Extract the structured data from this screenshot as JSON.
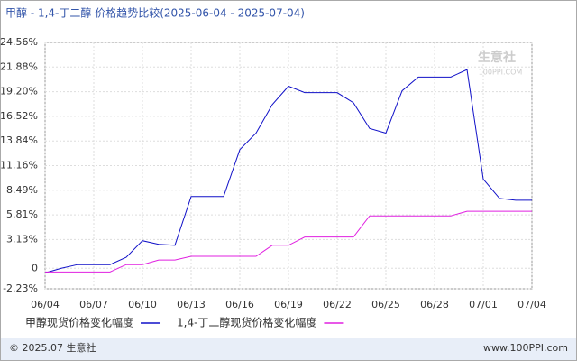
{
  "chart_data": {
    "type": "line",
    "title": "甲醇 - 1,4-丁二醇 价格趋势比较(2025-06-04 - 2025-07-04)",
    "categories": [
      "06/04",
      null,
      null,
      "06/07",
      null,
      null,
      "06/10",
      null,
      null,
      "06/13",
      null,
      null,
      "06/16",
      null,
      null,
      "06/19",
      null,
      null,
      "06/22",
      null,
      null,
      "06/25",
      null,
      null,
      "06/28",
      null,
      null,
      "07/01",
      null,
      null,
      "07/04"
    ],
    "series": [
      {
        "name": "甲醇现货价格变化幅度",
        "color": "#1010c8",
        "values": [
          -0.5,
          0,
          0.4,
          0.4,
          0.4,
          1.2,
          3.0,
          2.6,
          2.5,
          7.8,
          7.8,
          7.8,
          12.9,
          14.7,
          17.8,
          19.8,
          19.1,
          19.1,
          19.1,
          18.0,
          15.2,
          14.7,
          19.3,
          20.8,
          20.8,
          20.8,
          21.6,
          9.7,
          7.6,
          7.4,
          7.4
        ]
      },
      {
        "name": "1,4-丁二醇现货价格变化幅度",
        "color": "#e020e0",
        "values": [
          -0.4,
          -0.4,
          -0.4,
          -0.4,
          -0.4,
          0.4,
          0.4,
          0.9,
          0.9,
          1.3,
          1.3,
          1.3,
          1.3,
          1.3,
          2.5,
          2.5,
          3.4,
          3.4,
          3.4,
          3.4,
          5.7,
          5.7,
          5.7,
          5.7,
          5.7,
          5.7,
          6.2,
          6.2,
          6.2,
          6.2,
          6.2
        ]
      }
    ],
    "ylim": [
      -2.23,
      24.56
    ],
    "yticks": [
      {
        "value": -2.23,
        "label": "-2.23%"
      },
      0,
      {
        "value": 3.13,
        "label": "3.13%"
      },
      {
        "value": 5.81,
        "label": "5.81%"
      },
      {
        "value": 8.49,
        "label": "8.49%"
      },
      {
        "value": 11.16,
        "label": "11.16%"
      },
      {
        "value": 13.84,
        "label": "13.84%"
      },
      {
        "value": 16.52,
        "label": "16.52%"
      },
      {
        "value": 19.2,
        "label": "19.20%"
      },
      {
        "value": 21.88,
        "label": "21.88%"
      },
      {
        "value": 24.56,
        "label": "24.56%"
      }
    ],
    "grid": true,
    "watermark": {
      "brand": "生意社",
      "site": "100PPI.COM"
    },
    "footer": {
      "left": "© 2025.07 生意社",
      "right": "www.100PPI.com"
    }
  }
}
